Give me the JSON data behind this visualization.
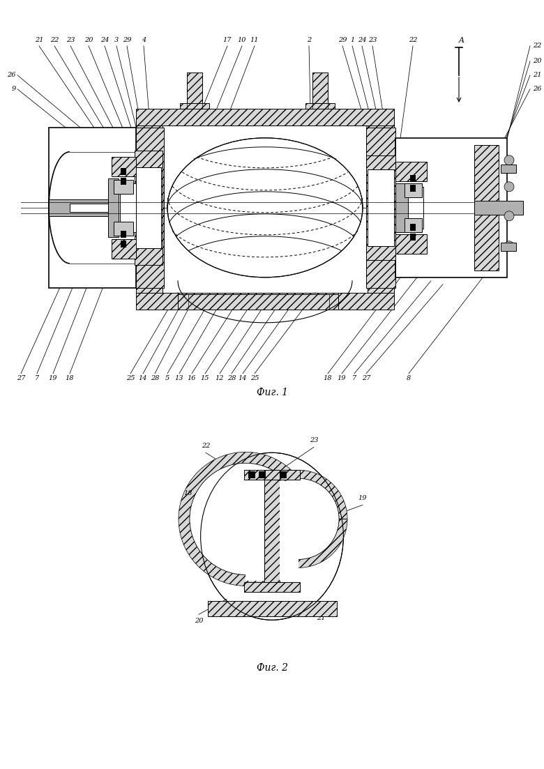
{
  "fig1_caption": "Фиг. 1",
  "fig2_caption": "Фиг. 2",
  "bg_color": "#ffffff",
  "line_color": "#000000",
  "gray_fill": "#b0b0b0",
  "light_gray": "#d8d8d8",
  "hatch_gray": "#c8c8c8",
  "label_fs": 7.0,
  "caption_fs": 10,
  "fig1_top_labels": [
    [
      "21",
      0.072
    ],
    [
      "22",
      0.1
    ],
    [
      "23",
      0.13
    ],
    [
      "20",
      0.163
    ],
    [
      "24",
      0.193
    ],
    [
      "3",
      0.214
    ],
    [
      "29",
      0.234
    ],
    [
      "4",
      0.265
    ],
    [
      "17",
      0.418
    ],
    [
      "10",
      0.445
    ],
    [
      "11",
      0.468
    ],
    [
      "2",
      0.568
    ],
    [
      "29",
      0.63
    ],
    [
      "1",
      0.648
    ],
    [
      "24",
      0.667
    ],
    [
      "23",
      0.686
    ],
    [
      "22",
      0.76
    ]
  ],
  "fig1_right_labels": [
    [
      "20",
      0.86
    ],
    [
      "21",
      0.842
    ],
    [
      "26",
      0.824
    ]
  ],
  "fig1_left_labels": [
    [
      "26",
      0.88
    ],
    [
      "9",
      0.86
    ]
  ],
  "fig1_bot_labels": [
    [
      "27",
      0.038
    ],
    [
      "7",
      0.068
    ],
    [
      "19",
      0.097
    ],
    [
      "18",
      0.122
    ],
    [
      "25",
      0.24
    ],
    [
      "14",
      0.263
    ],
    [
      "28",
      0.285
    ],
    [
      "5",
      0.308
    ],
    [
      "13",
      0.33
    ],
    [
      "16",
      0.353
    ],
    [
      "15",
      0.378
    ],
    [
      "12",
      0.402
    ],
    [
      "28",
      0.426
    ],
    [
      "14",
      0.447
    ],
    [
      "25",
      0.469
    ],
    [
      "18",
      0.603
    ],
    [
      "19",
      0.628
    ],
    [
      "7",
      0.65
    ],
    [
      "27",
      0.674
    ],
    [
      "8",
      0.752
    ]
  ]
}
